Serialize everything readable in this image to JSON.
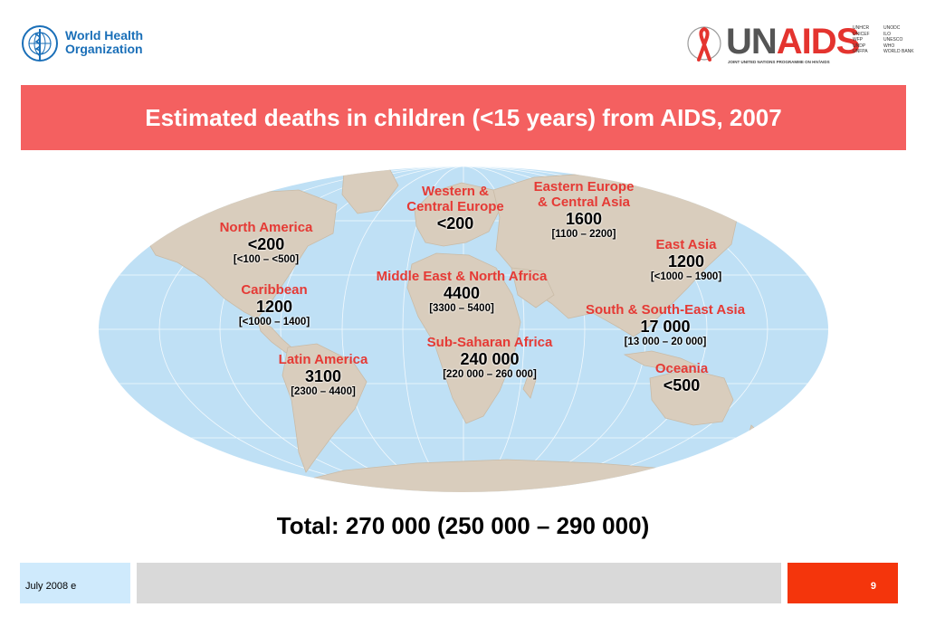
{
  "header": {
    "who_logo_text": "World Health\nOrganization",
    "unaids": {
      "word_un": "UN",
      "word_aids": "AIDS",
      "tagline": "JOINT UNITED NATIONS PROGRAMME ON HIV/AIDS",
      "cosponsors_col1": [
        "UNHCR",
        "UNICEF",
        "WFP",
        "UNDP",
        "UNFPA"
      ],
      "cosponsors_col2": [
        "UNODC",
        "ILO",
        "UNESCO",
        "WHO",
        "WORLD BANK"
      ]
    }
  },
  "title": "Estimated deaths in children (<15 years) from AIDS, 2007",
  "regions": {
    "north_america": {
      "name": "North America",
      "value": "<200",
      "range": "[<100 – <500]"
    },
    "caribbean": {
      "name": "Caribbean",
      "value": "1200",
      "range": "[<1000 – 1400]"
    },
    "latin_america": {
      "name": "Latin America",
      "value": "3100",
      "range": "[2300 – 4400]"
    },
    "western_central_europe": {
      "name_line1": "Western &",
      "name_line2": "Central Europe",
      "value": "<200"
    },
    "eastern_europe_central_asia": {
      "name_line1": "Eastern Europe",
      "name_line2": "& Central Asia",
      "value": "1600",
      "range": "[1100 – 2200]"
    },
    "east_asia": {
      "name": "East Asia",
      "value": "1200",
      "range": "[<1000 – 1900]"
    },
    "middle_east_north_africa": {
      "name": "Middle East & North Africa",
      "value": "4400",
      "range": "[3300 – 5400]"
    },
    "south_southeast_asia": {
      "name": "South & South-East Asia",
      "value": "17 000",
      "range": "[13 000 – 20 000]"
    },
    "sub_saharan_africa": {
      "name": "Sub-Saharan Africa",
      "value": "240 000",
      "range": "[220 000 – 260 000]"
    },
    "oceania": {
      "name": "Oceania",
      "value": "<500"
    }
  },
  "total": "Total: 270 000 (250 000 – 290 000)",
  "footer": {
    "date": "July 2008  e",
    "page": "9"
  },
  "colors": {
    "banner": "#f46060",
    "region_name": "#e53a35",
    "ocean": "#bfe0f5",
    "land": "#d9cdbd",
    "footer_date_bg": "#cfeafc",
    "footer_page_bg": "#f4350c"
  },
  "icons": {
    "who": "who-emblem-icon",
    "unaids": "red-ribbon-icon"
  }
}
